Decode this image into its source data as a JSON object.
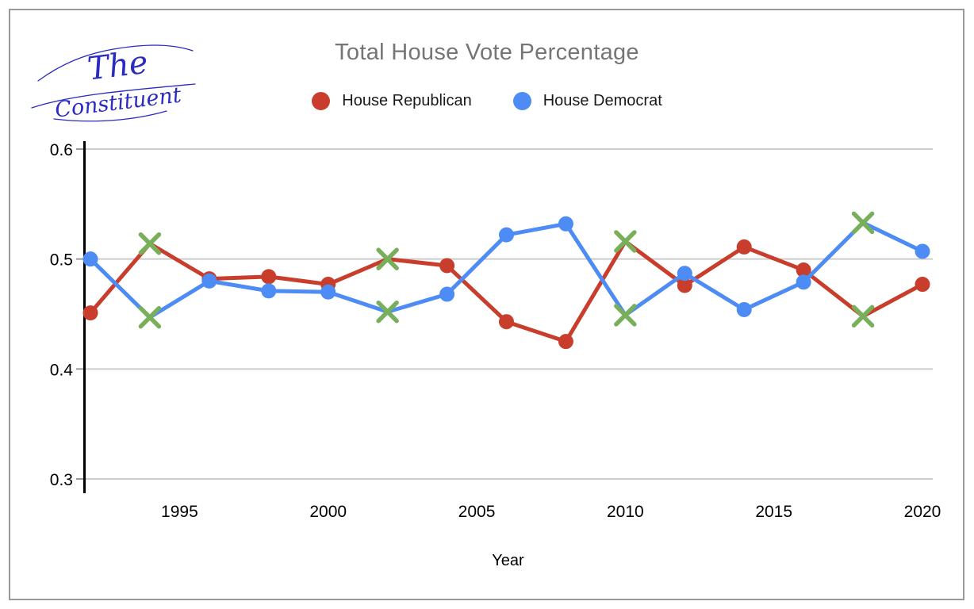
{
  "page": {
    "background": "#ffffff",
    "border_color": "#999999"
  },
  "logo": {
    "line1": "The",
    "line2": "Constituent",
    "color": "#2B2BC0"
  },
  "chart_data": {
    "type": "line",
    "title": "Total House Vote Percentage",
    "title_color": "#757575",
    "xlabel": "Year",
    "ylabel": "",
    "x": [
      1992,
      1994,
      1996,
      1998,
      2000,
      2002,
      2004,
      2006,
      2008,
      2010,
      2012,
      2014,
      2016,
      2018,
      2020
    ],
    "series": [
      {
        "name": "House Republican",
        "color": "#C83D2B",
        "values": [
          0.451,
          0.514,
          0.482,
          0.484,
          0.477,
          0.5,
          0.494,
          0.443,
          0.425,
          0.516,
          0.476,
          0.511,
          0.49,
          0.448,
          0.477
        ]
      },
      {
        "name": "House Democrat",
        "color": "#4D8BF5",
        "values": [
          0.5,
          0.447,
          0.48,
          0.471,
          0.47,
          0.452,
          0.468,
          0.522,
          0.532,
          0.449,
          0.487,
          0.454,
          0.479,
          0.533,
          0.507
        ]
      }
    ],
    "highlight_marker": {
      "shape": "x",
      "color": "#78AF5A",
      "years": [
        1994,
        2002,
        2010,
        2018
      ],
      "applies_to": "both series"
    },
    "ylim": [
      0.3,
      0.6
    ],
    "y_ticks": [
      "0.6",
      "0.5",
      "0.4",
      "0.3"
    ],
    "y_tick_values": [
      0.6,
      0.5,
      0.4,
      0.3
    ],
    "x_ticks": [
      "1995",
      "2000",
      "2005",
      "2010",
      "2015",
      "2020"
    ],
    "x_tick_values": [
      1995,
      2000,
      2005,
      2010,
      2015,
      2020
    ],
    "grid": true,
    "gridline_color": "#cccccc",
    "axis_color": "#000000",
    "legend_position": "top"
  }
}
